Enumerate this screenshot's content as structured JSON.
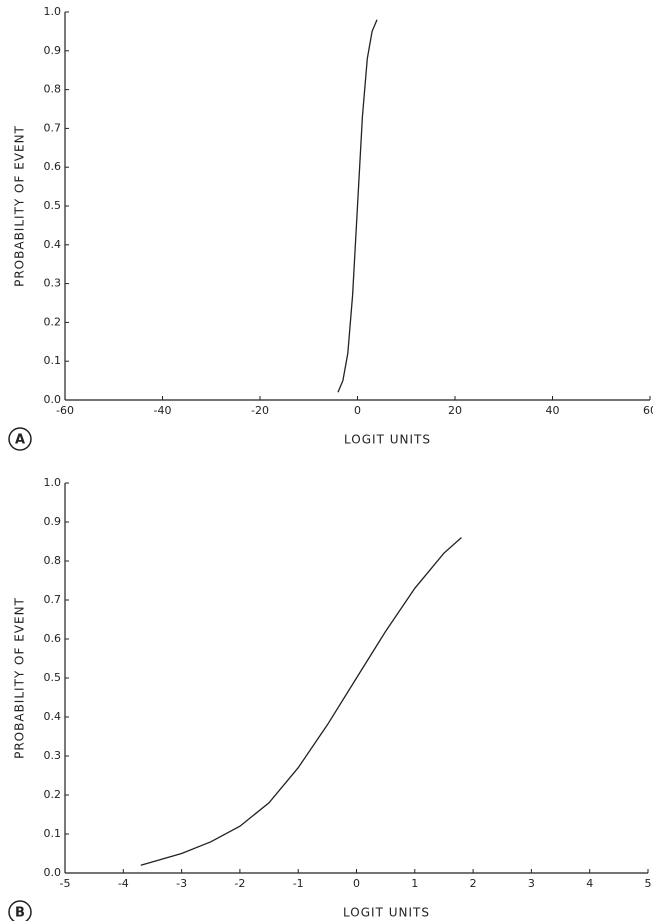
{
  "chart_data": [
    {
      "type": "line",
      "panel": "A",
      "x_label": "LOGIT UNITS",
      "y_label": "PROBABILITY OF EVENT",
      "xlim": [
        -60,
        60
      ],
      "xticks": [
        -60,
        -40,
        -20,
        0,
        20,
        40,
        60
      ],
      "ylim": [
        0,
        1
      ],
      "yticks": [
        {
          "value": 0,
          "label": "0.0"
        },
        0.1,
        0.2,
        0.3,
        0.4,
        0.5,
        0.6,
        0.7,
        0.8,
        0.9,
        {
          "value": 1,
          "label": "1.0"
        }
      ],
      "series": [
        {
          "color": "#222222",
          "x": [
            -4,
            -3,
            -2,
            -1,
            0,
            1,
            2,
            3,
            4
          ],
          "values": [
            0.02,
            0.05,
            0.12,
            0.27,
            0.5,
            0.73,
            0.88,
            0.95,
            0.98
          ]
        }
      ]
    },
    {
      "type": "line",
      "panel": "B",
      "x_label": "LOGIT UNITS",
      "y_label": "PROBABILITY OF EVENT",
      "xlim": [
        -5,
        5
      ],
      "xticks": [
        -5,
        -4,
        -3,
        -2,
        -1,
        0,
        1,
        2,
        3,
        4,
        5
      ],
      "ylim": [
        0,
        1
      ],
      "yticks": [
        {
          "value": 0,
          "label": "0.0"
        },
        0.1,
        0.2,
        0.3,
        0.4,
        0.5,
        0.6,
        0.7,
        0.8,
        0.9,
        {
          "value": 1,
          "label": "1.0"
        }
      ],
      "series": [
        {
          "color": "#222222",
          "x": [
            -3.7,
            -3,
            -2.5,
            -2,
            -1.5,
            -1,
            -0.5,
            0,
            0.5,
            1,
            1.5,
            1.8
          ],
          "values": [
            0.02,
            0.05,
            0.08,
            0.12,
            0.18,
            0.27,
            0.38,
            0.5,
            0.62,
            0.73,
            0.82,
            0.86
          ]
        }
      ]
    }
  ]
}
